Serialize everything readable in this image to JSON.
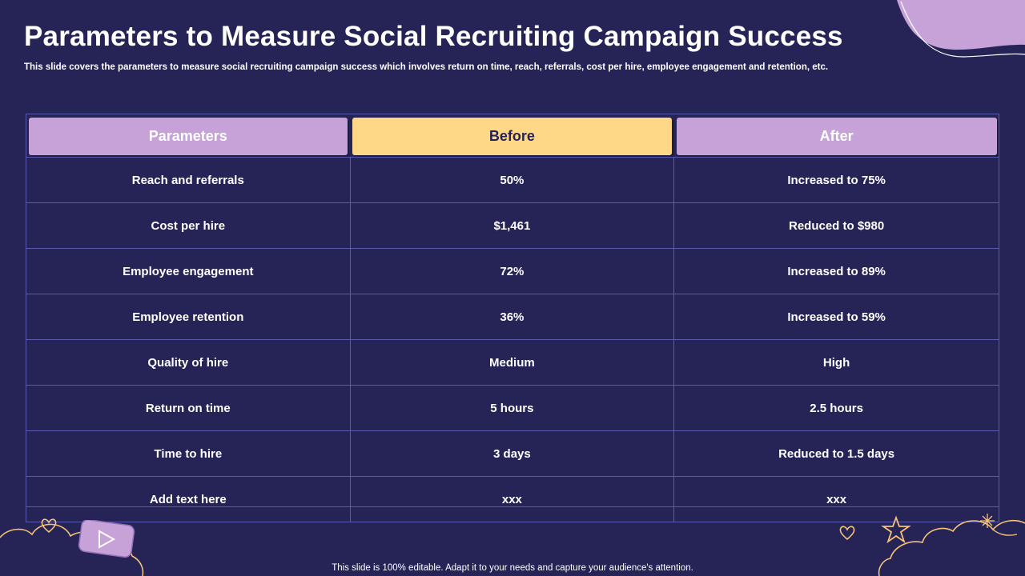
{
  "slide": {
    "title": "Parameters to Measure Social Recruiting Campaign Success",
    "subtitle": "This slide covers the parameters to measure social recruiting  campaign success which involves return on time,  reach,  referrals,  cost per hire,  employee engagement and retention,  etc.",
    "footer": "This slide is 100% editable. Adapt it to your needs and capture your audience's attention."
  },
  "table": {
    "headers": [
      "Parameters",
      "Before",
      "After"
    ],
    "rows": [
      [
        "Reach and referrals",
        "50%",
        "Increased to 75%"
      ],
      [
        "Cost per hire",
        "$1,461",
        "Reduced to $980"
      ],
      [
        "Employee engagement",
        "72%",
        "Increased to 89%"
      ],
      [
        "Employee retention",
        "36%",
        "Increased to 59%"
      ],
      [
        "Quality of  hire",
        "Medium",
        "High"
      ],
      [
        "Return on time",
        "5 hours",
        "2.5 hours"
      ],
      [
        "Time to hire",
        "3 days",
        "Reduced to 1.5 days"
      ],
      [
        "Add text here",
        "xxx",
        "xxx"
      ]
    ]
  },
  "colors": {
    "background": "#262457",
    "header_purple": "#c7a2d8",
    "header_yellow": "#ffd887",
    "grid_line": "#5a5ab2",
    "doodle": "#f5c27a"
  },
  "icons": [
    "play-button-icon",
    "heart-doodle-icon",
    "star-doodle-icon",
    "sparkle-icon",
    "cloud-doodle-icon"
  ]
}
